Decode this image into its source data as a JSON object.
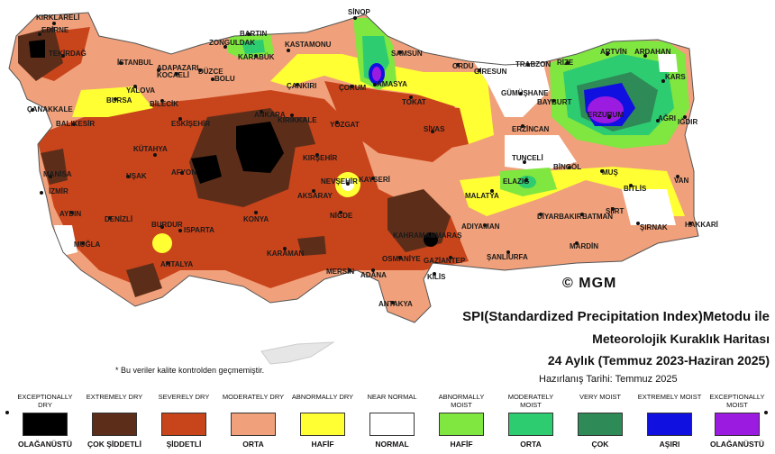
{
  "title": {
    "line1": "SPI(Standardized Precipitation Index)Metodu ile",
    "line2": "Meteorolojik Kuraklık Haritası",
    "line3": "24 Aylık (Temmuz 2023-Haziran 2025)",
    "prepared": "Hazırlanış Tarihi: Temmuz 2025"
  },
  "note": "* Bu veriler kalite kontrolden geçmemiştir.",
  "logo": "© MGM",
  "colors": {
    "exceptionally_dry": "#000000",
    "extremely_dry": "#5c2e1a",
    "severely_dry": "#c8441b",
    "moderately_dry": "#f0a07a",
    "abnormally_dry": "#ffff33",
    "near_normal": "#ffffff",
    "abnormally_moist": "#80e640",
    "moderately_moist": "#2ecc71",
    "very_moist": "#2e8b57",
    "extremely_moist": "#1010e0",
    "exceptionally_moist": "#9b1be0"
  },
  "legend": [
    {
      "en": "EXCEPTIONALLY DRY",
      "tr": "OLAĞANÜSTÜ",
      "color": "#000000"
    },
    {
      "en": "EXTREMELY DRY",
      "tr": "ÇOK ŞİDDETLİ",
      "color": "#5c2e1a"
    },
    {
      "en": "SEVERELY DRY",
      "tr": "ŞİDDETLİ",
      "color": "#c8441b"
    },
    {
      "en": "MODERATELY DRY",
      "tr": "ORTA",
      "color": "#f0a07a"
    },
    {
      "en": "ABNORMALLY DRY",
      "tr": "HAFİF",
      "color": "#ffff33"
    },
    {
      "en": "NEAR NORMAL",
      "tr": "NORMAL",
      "color": "#ffffff"
    },
    {
      "en": "ABNORMALLY MOIST",
      "tr": "HAFİF",
      "color": "#80e640"
    },
    {
      "en": "MODERATELY MOIST",
      "tr": "ORTA",
      "color": "#2ecc71"
    },
    {
      "en": "VERY MOIST",
      "tr": "ÇOK",
      "color": "#2e8b57"
    },
    {
      "en": "EXTREMELY MOIST",
      "tr": "AŞIRI",
      "color": "#1010e0"
    },
    {
      "en": "EXCEPTIONALLY MOIST",
      "tr": "OLAĞANÜSTÜ",
      "color": "#9b1be0"
    }
  ],
  "cities": {
    "kirklareli": "KIRKLARELİ",
    "edirne": "EDİRNE",
    "tekirdag": "TEKİRDAĞ",
    "istanbul": "İSTANBUL",
    "kocaeli": "KOCAELİ",
    "yalova": "YALOVA",
    "sakarya": "ADAPAZARI",
    "duzce": "DÜZCE",
    "bolu": "BOLU",
    "bursa": "BURSA",
    "bilecik": "BİLECİK",
    "canakkale": "ÇANAKKALE",
    "balikesir": "BALIKESİR",
    "eskisehir": "ESKİŞEHİR",
    "kutahya": "KÜTAHYA",
    "manisa": "MANİSA",
    "izmir": "İZMİR",
    "usak": "UŞAK",
    "afyon": "AFYON",
    "aydin": "AYDIN",
    "denizli": "DENİZLİ",
    "mugla": "MUĞLA",
    "burdur": "BURDUR",
    "isparta": "ISPARTA",
    "antalya": "ANTALYA",
    "zonguldak": "ZONGULDAK",
    "bartin": "BARTIN",
    "karabuk": "KARABÜK",
    "kastamonu": "KASTAMONU",
    "cankiri": "ÇANKIRI",
    "ankara": "ANKARA",
    "kirikkale": "KIRIKKALE",
    "konya": "KONYA",
    "karaman": "KARAMAN",
    "sinop": "SİNOP",
    "samsun": "SAMSUN",
    "corum": "ÇORUM",
    "amasya": "AMASYA",
    "yozgat": "YOZGAT",
    "tokat": "TOKAT",
    "kirsehir": "KIRŞEHİR",
    "nevsehir": "NEVŞEHİR",
    "aksaray": "AKSARAY",
    "kayseri": "KAYSERİ",
    "nigde": "NİĞDE",
    "sivas": "SİVAS",
    "ordu": "ORDU",
    "giresun": "GİRESUN",
    "trabzon": "TRABZON",
    "rize": "RİZE",
    "artvin": "ARTVİN",
    "ardahan": "ARDAHAN",
    "gumushane": "GÜMÜŞHANE",
    "bayburt": "BAYBURT",
    "kars": "KARS",
    "erzurum": "ERZURUM",
    "agri": "AĞRI",
    "igdir": "IĞDIR",
    "erzincan": "ERZİNCAN",
    "tunceli": "TUNCELİ",
    "bingol": "BİNGÖL",
    "mus": "MUŞ",
    "elazig": "ELAZIĞ",
    "malatya": "MALATYA",
    "bitlis": "BİTLİS",
    "van": "VAN",
    "diyarbakir": "DİYARBAKIR",
    "batman": "BATMAN",
    "siirt": "SİİRT",
    "sirnak": "ŞIRNAK",
    "hakkari": "HAKKARİ",
    "adiyaman": "ADIYAMAN",
    "kahramanmaras": "KAHRAMANMARAŞ",
    "mardin": "MARDİN",
    "sanliurfa": "ŞANLIURFA",
    "gaziantep": "GAZİANTEP",
    "kilis": "KİLİS",
    "osmaniye": "OSMANİYE",
    "adana": "ADANA",
    "mersin": "MERSİN",
    "hatay": "ANTAKYA"
  }
}
